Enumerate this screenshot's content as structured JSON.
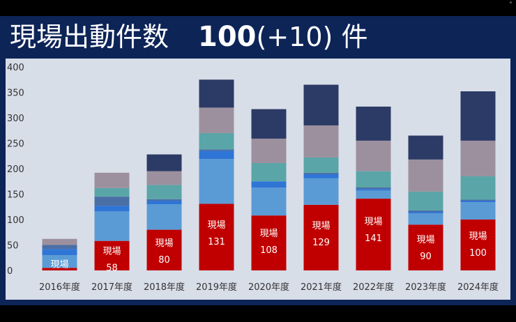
{
  "title": {
    "main": "現場出動件数",
    "total": "100",
    "delta": "(+10)",
    "unit": "件"
  },
  "chart_data": {
    "type": "bar",
    "stacked": true,
    "categories": [
      "2016年度",
      "2017年度",
      "2018年度",
      "2019年度",
      "2020年度",
      "2021年度",
      "2022年度",
      "2023年度",
      "2024年度"
    ],
    "ylim": [
      0,
      400
    ],
    "yticks": [
      0,
      50,
      100,
      150,
      200,
      250,
      300,
      350,
      400
    ],
    "grid": false,
    "legend": "none",
    "site_label": "現場",
    "series": [
      {
        "name": "現場",
        "color": "#c00000",
        "values": [
          5,
          58,
          80,
          131,
          108,
          129,
          141,
          90,
          100
        ],
        "show_values": [
          false,
          true,
          true,
          true,
          true,
          true,
          true,
          true,
          true
        ]
      },
      {
        "color": "#5b9bd5",
        "values": [
          25,
          58,
          50,
          88,
          55,
          52,
          16,
          22,
          34
        ]
      },
      {
        "color": "#2e75d6",
        "values": [
          12,
          11,
          7,
          16,
          12,
          8,
          3,
          3,
          3
        ]
      },
      {
        "color": "#4a6fa5",
        "values": [
          8,
          18,
          3,
          3,
          0,
          3,
          3,
          3,
          2
        ]
      },
      {
        "color": "#5aa5a8",
        "values": [
          0,
          17,
          28,
          32,
          36,
          30,
          32,
          37,
          46
        ]
      },
      {
        "color": "#9d909e",
        "values": [
          12,
          30,
          27,
          50,
          48,
          63,
          60,
          63,
          70
        ]
      },
      {
        "color": "#2c3a66",
        "values": [
          0,
          0,
          33,
          55,
          58,
          80,
          67,
          47,
          97
        ]
      }
    ]
  }
}
